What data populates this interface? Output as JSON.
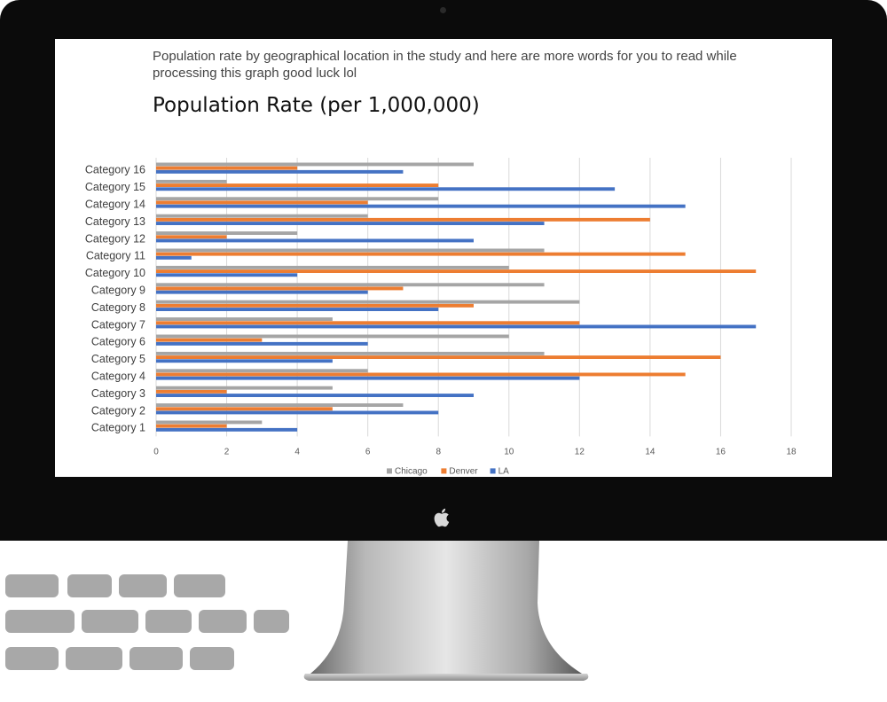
{
  "screen": {
    "subtitle": "Population rate by geographical location in the study and here are more words for you to read while processing this graph good luck lol",
    "title": "Population Rate (per 1,000,000)"
  },
  "colors": {
    "Chicago": "#a5a5a5",
    "Denver": "#ed7d31",
    "LA": "#4472c4",
    "bezel": "#0b0b0b"
  },
  "chart_data": {
    "type": "bar",
    "orientation": "horizontal",
    "title": "Population Rate (per 1,000,000)",
    "categories": [
      "Category 1",
      "Category 2",
      "Category 3",
      "Category 4",
      "Category 5",
      "Category 6",
      "Category 7",
      "Category 8",
      "Category 9",
      "Category 10",
      "Category 11",
      "Category 12",
      "Category 13",
      "Category 14",
      "Category 15",
      "Category 16"
    ],
    "series": [
      {
        "name": "Chicago",
        "values": [
          3,
          7,
          5,
          6,
          11,
          10,
          5,
          12,
          11,
          10,
          11,
          4,
          6,
          8,
          2,
          9
        ]
      },
      {
        "name": "Denver",
        "values": [
          2,
          5,
          2,
          15,
          16,
          3,
          12,
          9,
          7,
          17,
          15,
          2,
          14,
          6,
          8,
          4
        ]
      },
      {
        "name": "LA",
        "values": [
          4,
          8,
          9,
          12,
          5,
          6,
          17,
          8,
          6,
          4,
          1,
          9,
          11,
          15,
          13,
          7
        ]
      }
    ],
    "xlim": [
      0,
      18
    ],
    "xticks": [
      "0",
      "2",
      "4",
      "6",
      "8",
      "10",
      "12",
      "14",
      "16",
      "18"
    ],
    "grid": true,
    "legend": "bottom"
  }
}
